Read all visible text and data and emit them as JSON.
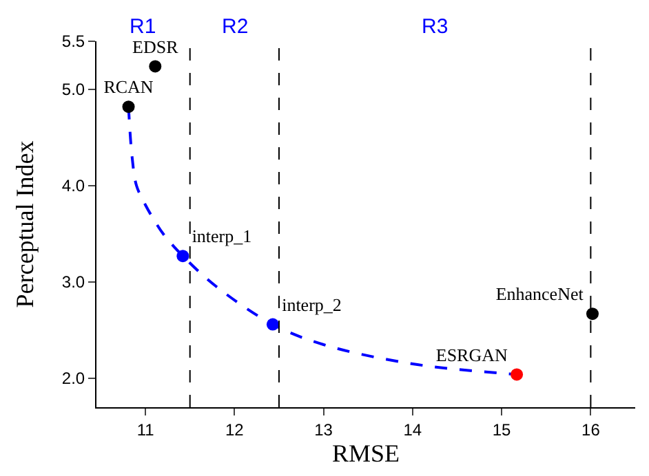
{
  "chart_data": {
    "type": "scatter",
    "xlabel": "RMSE",
    "ylabel": "Perceptual Index",
    "xlim": [
      10.45,
      16.5
    ],
    "xticks": [
      11,
      12,
      13,
      14,
      15,
      16
    ],
    "ylim": [
      1.7,
      5.5
    ],
    "yticks": [
      {
        "value": 2,
        "label": "2.0"
      },
      {
        "value": 3,
        "label": "3.0"
      },
      {
        "value": 4,
        "label": "4.0"
      },
      {
        "value": 5,
        "label": "5.0"
      },
      5.5
    ],
    "legend": false,
    "marker": "circle",
    "series": [
      {
        "type": "line",
        "color": "#0000ff",
        "line_style": "dashed",
        "marker": "none",
        "x": [
          10.81,
          10.85,
          10.9,
          11.0,
          11.1,
          11.2,
          11.42,
          11.8,
          12.43,
          13.0,
          14.0,
          15.17
        ],
        "values": [
          4.82,
          4.3,
          4.0,
          3.8,
          3.64,
          3.5,
          3.27,
          2.95,
          2.56,
          2.35,
          2.15,
          2.04
        ]
      },
      {
        "name": "RCAN",
        "color": "#000000",
        "x": [
          10.81
        ],
        "values": [
          4.82
        ]
      },
      {
        "name": "EDSR",
        "color": "#000000",
        "x": [
          11.11
        ],
        "values": [
          5.24
        ]
      },
      {
        "name": "interp_1",
        "color": "#0000ff",
        "x": [
          11.42
        ],
        "values": [
          3.27
        ]
      },
      {
        "name": "interp_2",
        "color": "#0000ff",
        "x": [
          12.43
        ],
        "values": [
          2.56
        ]
      },
      {
        "name": "ESRGAN",
        "color": "#ff0000",
        "x": [
          15.17
        ],
        "values": [
          2.04
        ]
      },
      {
        "name": "EnhanceNet",
        "color": "#000000",
        "x": [
          16.02
        ],
        "values": [
          2.67
        ]
      }
    ],
    "ref_lines": [
      {
        "axis": "x",
        "value": 11.5,
        "color": "#000000",
        "line_style": "dashed"
      },
      {
        "axis": "x",
        "value": 12.5,
        "color": "#000000",
        "line_style": "dashed"
      },
      {
        "axis": "x",
        "value": 16,
        "color": "#000000",
        "line_style": "dashed"
      }
    ],
    "annotations": [
      "R1",
      "R2",
      "R3"
    ]
  }
}
